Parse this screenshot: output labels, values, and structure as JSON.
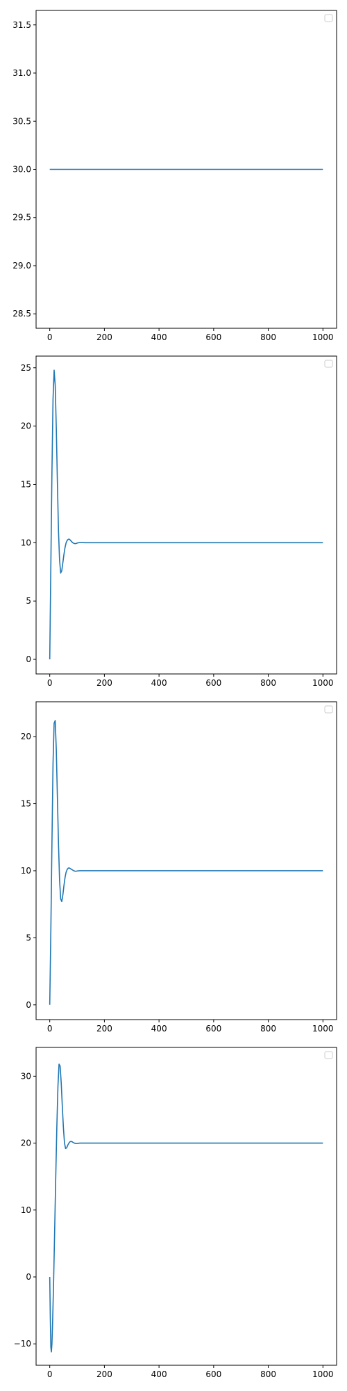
{
  "style": {
    "line_color": "#1f77b4",
    "axes_color": "#000000",
    "background": "#ffffff"
  },
  "chart_data": [
    {
      "type": "line",
      "xlim": [
        -50,
        1050
      ],
      "ylim": [
        28.35,
        31.65
      ],
      "xticks": [
        0,
        200,
        400,
        600,
        800,
        1000
      ],
      "yticks": [
        28.5,
        29.0,
        29.5,
        30.0,
        30.5,
        31.0,
        31.5
      ],
      "ytick_labels": [
        "28.5",
        "29.0",
        "29.5",
        "30.0",
        "30.5",
        "31.0",
        "31.5"
      ],
      "legend": "top-right, empty",
      "series": [
        {
          "x": [
            0,
            1000
          ],
          "y": [
            30,
            30
          ]
        }
      ]
    },
    {
      "type": "line",
      "xlim": [
        -50,
        1050
      ],
      "ylim": [
        -1.25,
        26.0
      ],
      "xticks": [
        0,
        200,
        400,
        600,
        800,
        1000
      ],
      "yticks": [
        0,
        5,
        10,
        15,
        20,
        25
      ],
      "ytick_labels": [
        "0",
        "5",
        "10",
        "15",
        "20",
        "25"
      ],
      "legend": "top-right, empty",
      "series": [
        {
          "x": [
            0,
            4,
            8,
            12,
            16,
            20,
            24,
            28,
            32,
            36,
            40,
            44,
            48,
            52,
            56,
            60,
            64,
            68,
            72,
            76,
            80,
            84,
            88,
            92,
            96,
            100,
            110,
            120,
            130,
            140,
            150,
            200,
            300,
            500,
            1000
          ],
          "y": [
            0,
            8.0,
            16.0,
            22.3,
            24.8,
            23.5,
            19.8,
            15.2,
            11.0,
            8.5,
            7.4,
            7.6,
            8.3,
            9.0,
            9.6,
            10.0,
            10.2,
            10.3,
            10.3,
            10.2,
            10.1,
            10.0,
            9.95,
            9.92,
            9.93,
            9.97,
            10.02,
            10.01,
            10.0,
            10.0,
            10.0,
            10.0,
            10.0,
            10.0,
            10.0
          ]
        }
      ]
    },
    {
      "type": "line",
      "xlim": [
        -50,
        1050
      ],
      "ylim": [
        -1.1,
        22.6
      ],
      "xticks": [
        0,
        200,
        400,
        600,
        800,
        1000
      ],
      "yticks": [
        0,
        5,
        10,
        15,
        20
      ],
      "ytick_labels": [
        "0",
        "5",
        "10",
        "15",
        "20"
      ],
      "legend": "top-right, empty",
      "series": [
        {
          "x": [
            0,
            4,
            8,
            12,
            16,
            20,
            24,
            28,
            32,
            36,
            40,
            44,
            48,
            52,
            56,
            60,
            64,
            68,
            72,
            76,
            80,
            84,
            88,
            92,
            96,
            100,
            110,
            120,
            130,
            140,
            150,
            200,
            300,
            500,
            1000
          ],
          "y": [
            0,
            5.5,
            12.0,
            18.0,
            21.0,
            21.2,
            19.0,
            15.5,
            12.0,
            9.3,
            7.9,
            7.7,
            8.2,
            8.9,
            9.5,
            9.9,
            10.1,
            10.2,
            10.2,
            10.15,
            10.1,
            10.05,
            10.0,
            9.97,
            9.96,
            9.98,
            10.0,
            10.0,
            10.0,
            10.0,
            10.0,
            10.0,
            10.0,
            10.0,
            10.0
          ]
        }
      ]
    },
    {
      "type": "line",
      "xlim": [
        -50,
        1050
      ],
      "ylim": [
        -13.2,
        34.3
      ],
      "xticks": [
        0,
        200,
        400,
        600,
        800,
        1000
      ],
      "yticks": [
        -10,
        0,
        10,
        20,
        30
      ],
      "ytick_labels": [
        "−10",
        "0",
        "10",
        "20",
        "30"
      ],
      "legend": "top-right, empty",
      "series": [
        {
          "x": [
            0,
            2,
            4,
            6,
            8,
            10,
            14,
            18,
            22,
            26,
            30,
            34,
            38,
            42,
            46,
            50,
            54,
            58,
            62,
            66,
            70,
            74,
            78,
            82,
            86,
            90,
            95,
            100,
            110,
            120,
            130,
            150,
            200,
            300,
            500,
            1000
          ],
          "y": [
            0,
            -6.0,
            -10.5,
            -11.2,
            -10.0,
            -7.5,
            -1.0,
            7.0,
            15.0,
            22.5,
            28.5,
            31.8,
            31.5,
            29.0,
            25.5,
            22.3,
            20.0,
            19.2,
            19.3,
            19.7,
            20.0,
            20.2,
            20.25,
            20.2,
            20.1,
            20.0,
            19.95,
            19.95,
            20.0,
            20.0,
            20.0,
            20.0,
            20.0,
            20.0,
            20.0,
            20.0
          ]
        }
      ]
    }
  ]
}
